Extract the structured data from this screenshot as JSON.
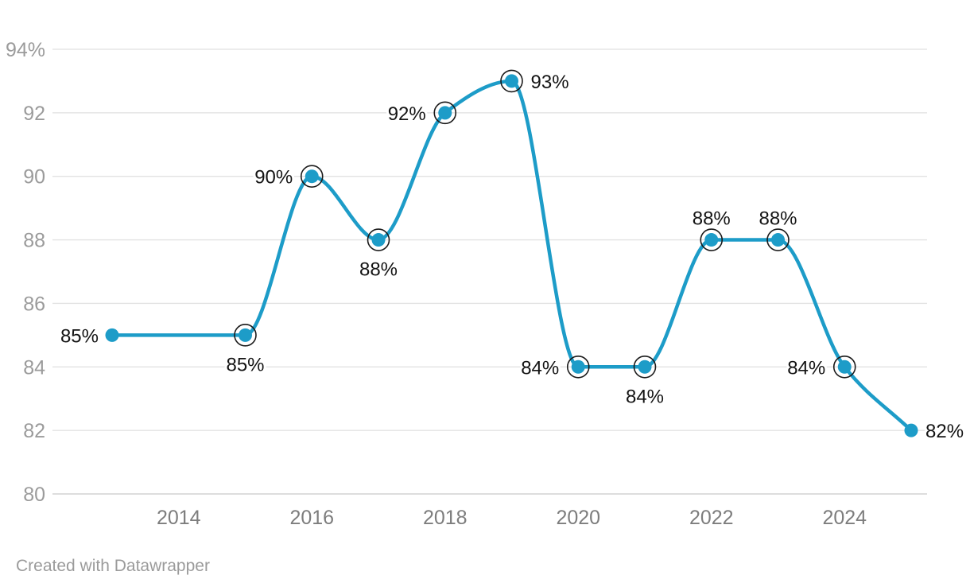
{
  "chart_data": {
    "type": "line",
    "title": "",
    "xlabel": "",
    "ylabel": "",
    "x": [
      2013,
      2015,
      2016,
      2017,
      2018,
      2019,
      2020,
      2021,
      2022,
      2023,
      2024,
      2025
    ],
    "values": [
      85,
      85,
      90,
      88,
      92,
      93,
      84,
      84,
      88,
      88,
      84,
      82
    ],
    "points": [
      {
        "year": 2013,
        "value": 85,
        "label": "85%",
        "label_position": "left",
        "ring": false
      },
      {
        "year": 2015,
        "value": 85,
        "label": "85%",
        "label_position": "below",
        "ring": true
      },
      {
        "year": 2016,
        "value": 90,
        "label": "90%",
        "label_position": "left",
        "ring": true
      },
      {
        "year": 2017,
        "value": 88,
        "label": "88%",
        "label_position": "below",
        "ring": true
      },
      {
        "year": 2018,
        "value": 92,
        "label": "92%",
        "label_position": "left",
        "ring": true
      },
      {
        "year": 2019,
        "value": 93,
        "label": "93%",
        "label_position": "right",
        "ring": true
      },
      {
        "year": 2020,
        "value": 84,
        "label": "84%",
        "label_position": "left",
        "ring": true
      },
      {
        "year": 2021,
        "value": 84,
        "label": "84%",
        "label_position": "below",
        "ring": true
      },
      {
        "year": 2022,
        "value": 88,
        "label": "88%",
        "label_position": "above",
        "ring": true
      },
      {
        "year": 2023,
        "value": 88,
        "label": "88%",
        "label_position": "above",
        "ring": true
      },
      {
        "year": 2024,
        "value": 84,
        "label": "84%",
        "label_position": "left",
        "ring": true
      },
      {
        "year": 2025,
        "value": 82,
        "label": "82%",
        "label_position": "right",
        "ring": false
      }
    ],
    "y_axis": {
      "min": 80,
      "max": 94,
      "step": 2,
      "tick_labels": [
        "80",
        "82",
        "84",
        "86",
        "88",
        "90",
        "92",
        "94%"
      ]
    },
    "x_axis": {
      "ticks": [
        2014,
        2016,
        2018,
        2020,
        2022,
        2024
      ],
      "tick_labels": [
        "2014",
        "2016",
        "2018",
        "2020",
        "2022",
        "2024"
      ]
    },
    "grid": true,
    "legend": "none",
    "line_interpolation": "monotone"
  },
  "colors": {
    "line": "#1d9cc8",
    "dot": "#1d9cc8",
    "ring": "#1a1a1a",
    "value_label": "#141414",
    "grid": "#e2e2e2",
    "grid_baseline": "#d2d2d2",
    "y_tick": "#9b9b9b",
    "x_tick": "#7d7d7d",
    "attribution": "#9b9b9b"
  },
  "footer": {
    "attribution": "Created with Datawrapper"
  }
}
